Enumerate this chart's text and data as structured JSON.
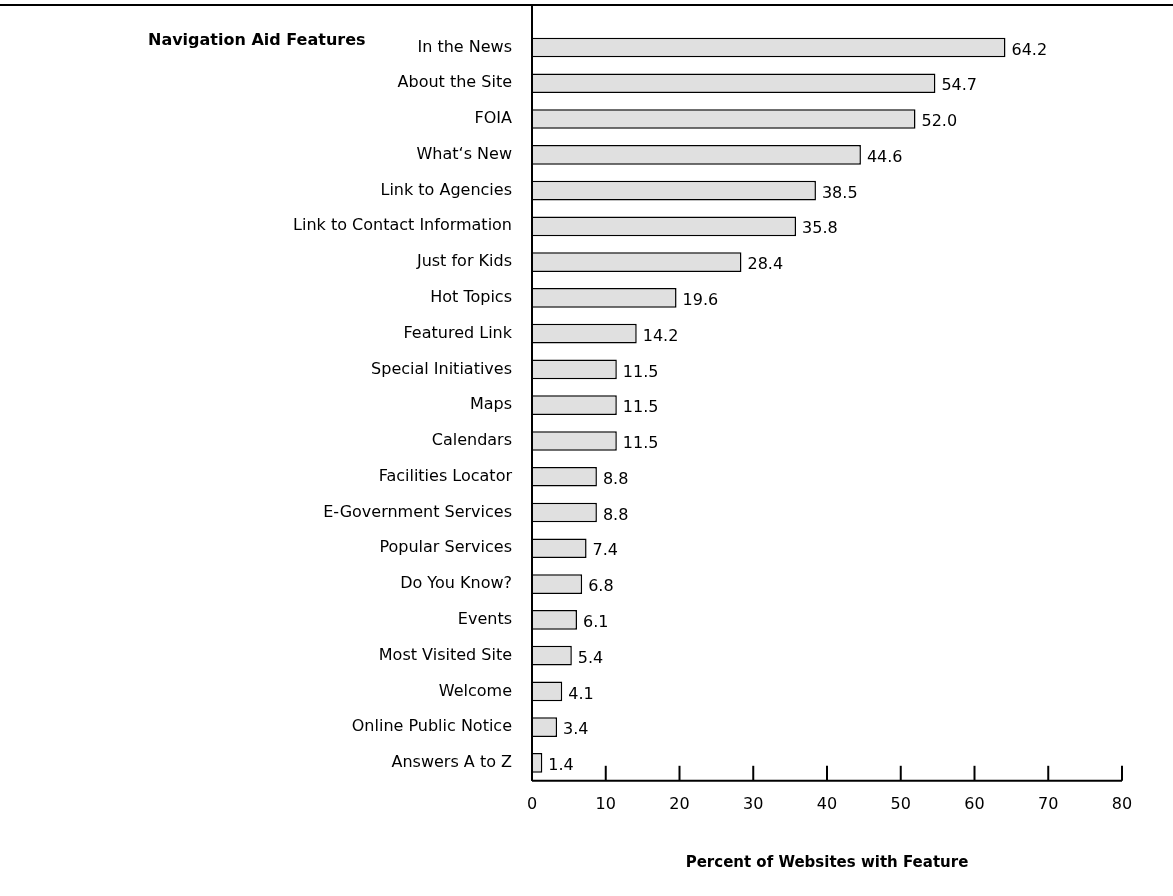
{
  "chart_data": {
    "type": "bar",
    "orientation": "horizontal",
    "title": "Navigation Aid Features",
    "xlabel": "Percent of Websites with Feature",
    "categories": [
      "In the News",
      "About the Site",
      "FOIA",
      "What‘s New",
      "Link to Agencies",
      "Link to Contact Information",
      "Just for Kids",
      "Hot Topics",
      "Featured Link",
      "Special Initiatives",
      "Maps",
      "Calendars",
      "Facilities Locator",
      "E-Government Services",
      "Popular Services",
      "Do You Know?",
      "Events",
      "Most Visited Site",
      "Welcome",
      "Online Public Notice",
      "Answers A to Z"
    ],
    "values": [
      64.2,
      54.7,
      52.0,
      44.6,
      38.5,
      35.8,
      28.4,
      19.6,
      14.2,
      11.5,
      11.5,
      11.5,
      8.8,
      8.8,
      7.4,
      6.8,
      6.1,
      5.4,
      4.1,
      3.4,
      1.4
    ],
    "value_labels": [
      "64.2",
      "54.7",
      "52.0",
      "44.6",
      "38.5",
      "35.8",
      "28.4",
      "19.6",
      "14.2",
      "11.5",
      "11.5",
      "11.5",
      "8.8",
      "8.8",
      "7.4",
      "6.8",
      "6.1",
      "5.4",
      "4.1",
      "3.4",
      "1.4"
    ],
    "color": "#e0e0e0",
    "xlim": [
      0,
      80
    ],
    "xticks": [
      0,
      10,
      20,
      30,
      40,
      50,
      60,
      70,
      80
    ],
    "grid": false,
    "legend": false
  }
}
